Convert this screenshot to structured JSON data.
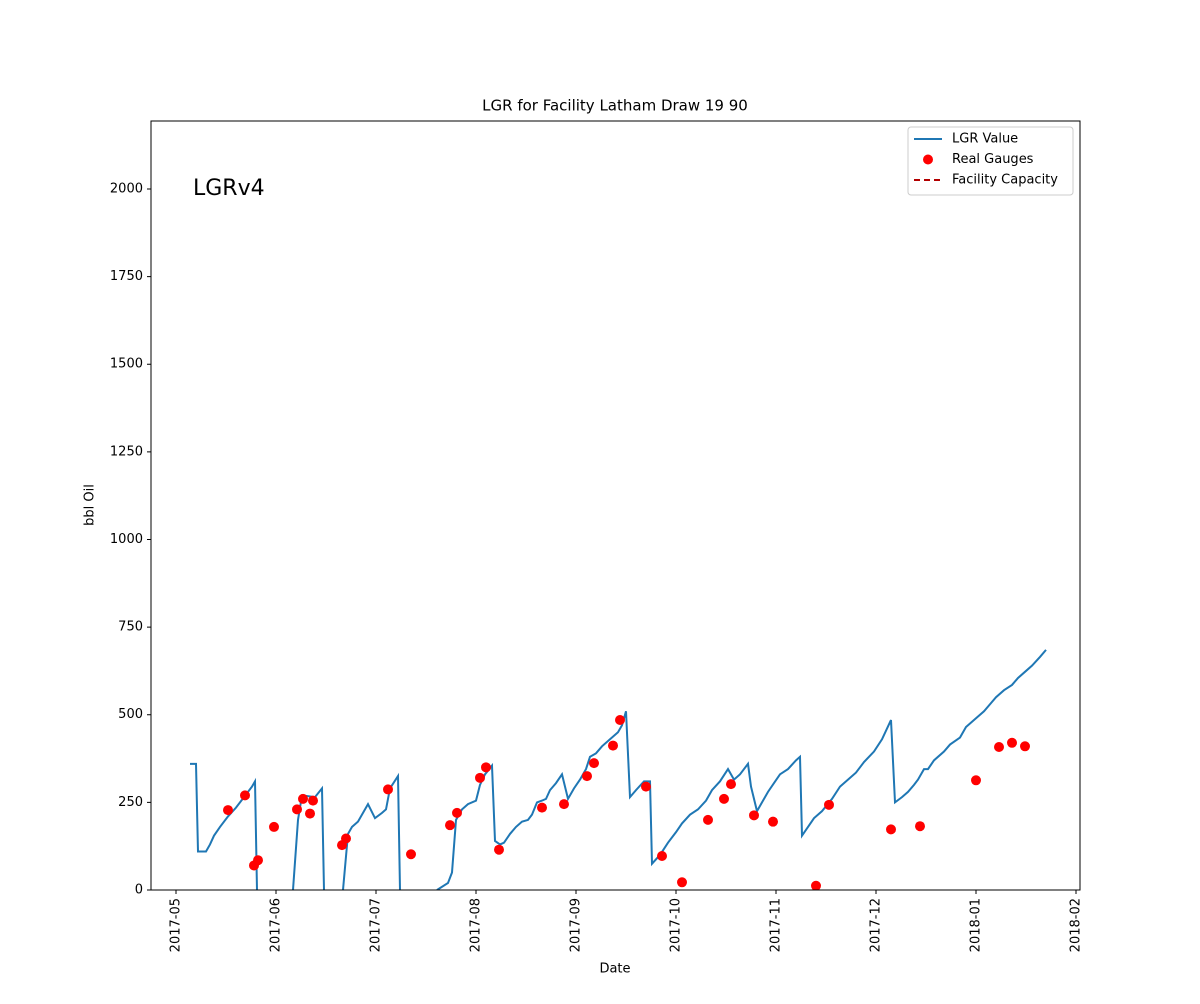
{
  "chart_data": {
    "type": "line",
    "title": "LGR for Facility Latham Draw 19 90",
    "xlabel": "Date",
    "ylabel": "bbl Oil",
    "annotation": "LGRv4",
    "xlim": [
      -0.25,
      9.04
    ],
    "xticks": [
      {
        "value": 0,
        "label": "2017-05"
      },
      {
        "value": 1,
        "label": "2017-06"
      },
      {
        "value": 2,
        "label": "2017-07"
      },
      {
        "value": 3,
        "label": "2017-08"
      },
      {
        "value": 4,
        "label": "2017-09"
      },
      {
        "value": 5,
        "label": "2017-10"
      },
      {
        "value": 6,
        "label": "2017-11"
      },
      {
        "value": 7,
        "label": "2017-12"
      },
      {
        "value": 8,
        "label": "2018-01"
      },
      {
        "value": 9,
        "label": "2018-02"
      }
    ],
    "ylim": [
      0,
      2194
    ],
    "yticks": [
      0,
      250,
      500,
      750,
      1000,
      1250,
      1500,
      1750,
      2000
    ],
    "grid": false,
    "legend": "upper right",
    "series": [
      {
        "name": "LGR Value",
        "color": "#1f77b4",
        "style": "line",
        "x": [
          0.14,
          0.2,
          0.22,
          0.3,
          0.34,
          0.38,
          0.44,
          0.52,
          0.6,
          0.68,
          0.76,
          0.79,
          0.81,
          0.99,
          1.17,
          1.22,
          1.26,
          1.39,
          1.46,
          1.48,
          1.58,
          1.67,
          1.72,
          1.76,
          1.82,
          1.92,
          1.99,
          2.06,
          2.1,
          2.14,
          2.22,
          2.24,
          2.42,
          2.61,
          2.72,
          2.76,
          2.8,
          2.86,
          2.92,
          3.0,
          3.04,
          3.09,
          3.16,
          3.19,
          3.24,
          3.28,
          3.34,
          3.4,
          3.46,
          3.52,
          3.56,
          3.61,
          3.66,
          3.7,
          3.74,
          3.8,
          3.86,
          3.92,
          3.98,
          4.04,
          4.1,
          4.14,
          4.2,
          4.26,
          4.34,
          4.42,
          4.46,
          4.5,
          4.54,
          4.6,
          4.68,
          4.74,
          4.76,
          4.84,
          4.92,
          5.0,
          5.06,
          5.14,
          5.22,
          5.3,
          5.36,
          5.44,
          5.52,
          5.58,
          5.64,
          5.72,
          5.75,
          5.81,
          5.86,
          5.92,
          5.98,
          6.04,
          6.12,
          6.2,
          6.24,
          6.26,
          6.32,
          6.38,
          6.46,
          6.56,
          6.64,
          6.72,
          6.8,
          6.88,
          6.98,
          7.06,
          7.15,
          7.19,
          7.26,
          7.32,
          7.38,
          7.42,
          7.48,
          7.52,
          7.58,
          7.68,
          7.74,
          7.84,
          7.9,
          8.0,
          8.08,
          8.14,
          8.2,
          8.28,
          8.36,
          8.42,
          8.5,
          8.56,
          8.64,
          8.7
        ],
        "values": [
          360,
          360,
          110,
          110,
          130,
          155,
          180,
          210,
          235,
          265,
          295,
          310,
          0,
          null,
          0,
          200,
          270,
          265,
          290,
          0,
          null,
          0,
          160,
          180,
          195,
          245,
          205,
          220,
          230,
          290,
          325,
          0,
          null,
          0,
          20,
          50,
          200,
          230,
          245,
          255,
          300,
          330,
          355,
          140,
          130,
          135,
          160,
          180,
          195,
          200,
          215,
          250,
          255,
          260,
          285,
          305,
          330,
          260,
          290,
          315,
          345,
          380,
          390,
          410,
          430,
          450,
          470,
          510,
          265,
          285,
          310,
          310,
          75,
          100,
          135,
          165,
          190,
          215,
          230,
          255,
          285,
          310,
          345,
          315,
          330,
          360,
          295,
          225,
          250,
          280,
          305,
          330,
          345,
          370,
          380,
          155,
          180,
          205,
          225,
          260,
          295,
          315,
          335,
          365,
          395,
          430,
          485,
          250,
          265,
          280,
          300,
          315,
          345,
          345,
          370,
          395,
          415,
          435,
          465,
          490,
          510,
          530,
          550,
          570,
          585,
          605,
          625,
          640,
          665,
          685
        ]
      },
      {
        "name": "Real Gauges",
        "color": "#ff0000",
        "style": "markers",
        "x": [
          0.52,
          0.69,
          0.78,
          0.82,
          0.98,
          1.21,
          1.27,
          1.34,
          1.37,
          1.66,
          1.7,
          2.12,
          2.35,
          2.74,
          2.81,
          3.04,
          3.1,
          3.23,
          3.66,
          3.88,
          4.11,
          4.18,
          4.37,
          4.44,
          4.7,
          4.86,
          5.06,
          5.32,
          5.48,
          5.55,
          5.78,
          5.97,
          6.4,
          6.53,
          7.15,
          7.44,
          8.0,
          8.23,
          8.36,
          8.49
        ],
        "values": [
          228,
          270,
          70,
          85,
          180,
          230,
          260,
          218,
          255,
          128,
          147,
          287,
          102,
          185,
          220,
          320,
          350,
          115,
          235,
          245,
          325,
          362,
          412,
          485,
          295,
          97,
          22,
          200,
          260,
          302,
          213,
          195,
          12,
          243,
          173,
          182,
          313,
          408,
          420,
          410
        ]
      },
      {
        "name": "Facility Capacity",
        "color": "#b30000",
        "style": "dashed",
        "x": [],
        "values": []
      }
    ]
  }
}
